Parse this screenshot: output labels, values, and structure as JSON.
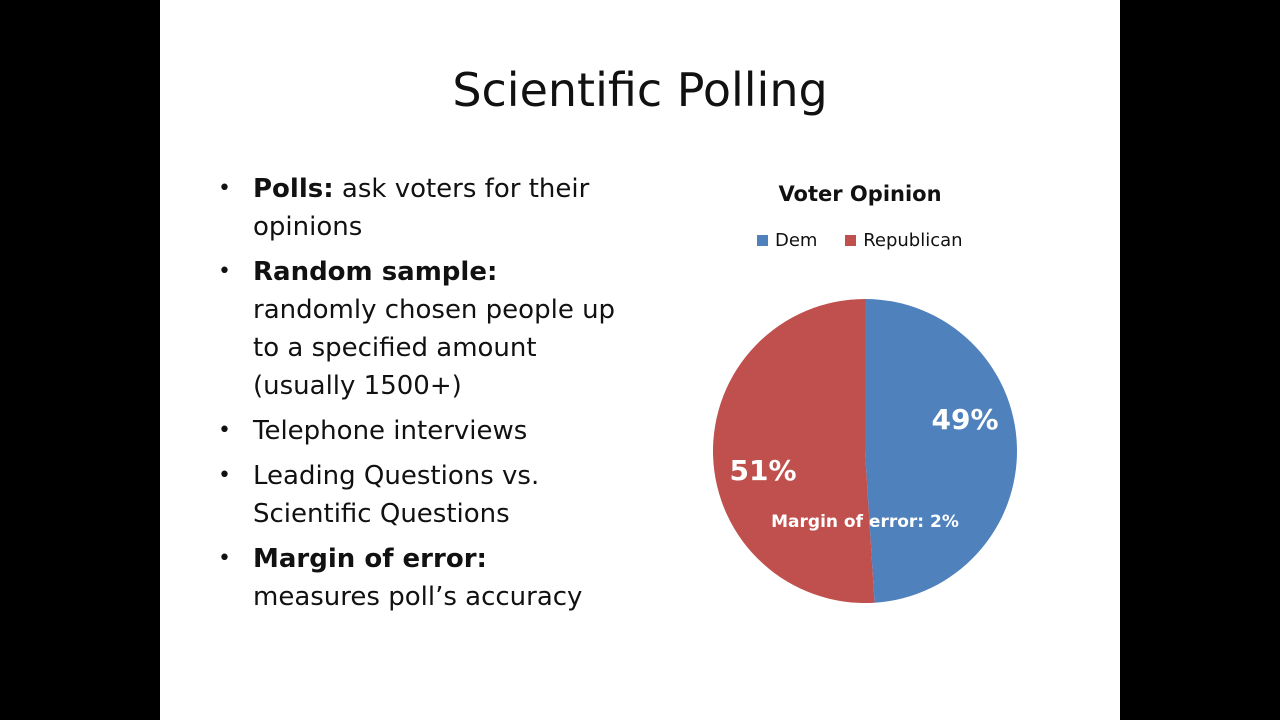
{
  "slide": {
    "title": "Scientific Polling",
    "bullets": [
      {
        "bold": "Polls:",
        "text": " ask voters for their opinions"
      },
      {
        "bold": "Random sample:",
        "text": " randomly chosen people up to a specified amount (usually 1500+)"
      },
      {
        "bold": "",
        "text": "Telephone interviews"
      },
      {
        "bold": "",
        "text": "Leading Questions vs. Scientific Questions"
      },
      {
        "bold": "Margin of error:",
        "text": " measures poll’s accuracy"
      }
    ]
  },
  "chart_data": {
    "type": "pie",
    "title": "Voter Opinion",
    "legend_position": "top",
    "categories": [
      "Dem",
      "Republican"
    ],
    "values": [
      49,
      51
    ],
    "data_labels": [
      "49%",
      "51%"
    ],
    "colors": [
      "#4f81bd",
      "#c0504d"
    ],
    "annotation": "Margin of error: 2%"
  }
}
